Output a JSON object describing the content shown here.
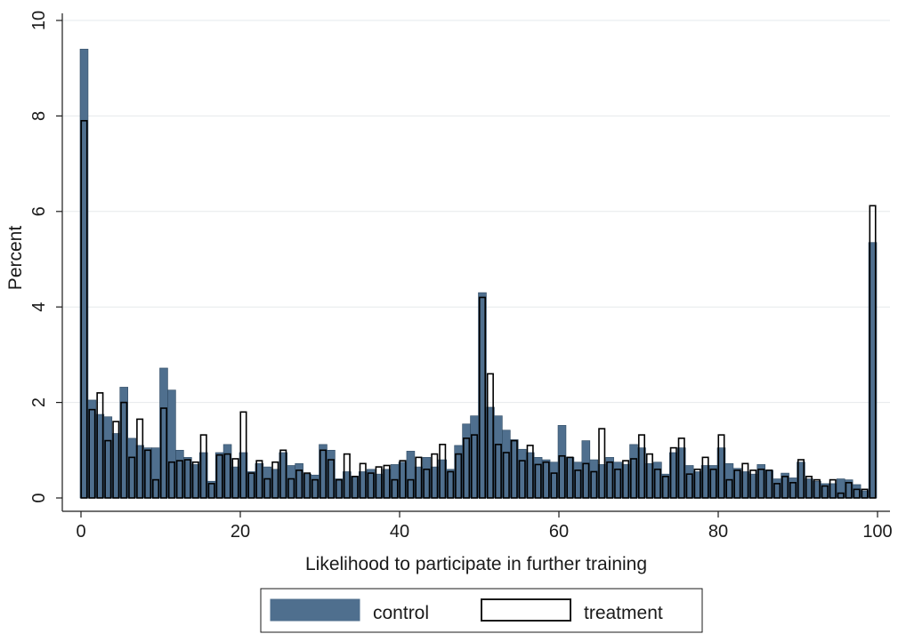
{
  "chart_data": {
    "type": "bar",
    "title": "",
    "xlabel": "Likelihood to participate in further training",
    "ylabel": "Percent",
    "xlim": [
      0,
      100
    ],
    "ylim": [
      0,
      10
    ],
    "xticks": [
      0,
      20,
      40,
      60,
      80,
      100
    ],
    "yticks": [
      0,
      2,
      4,
      6,
      8,
      10
    ],
    "grid": true,
    "legend_position": "bottom",
    "x": [
      0,
      1,
      2,
      3,
      4,
      5,
      6,
      7,
      8,
      9,
      10,
      11,
      12,
      13,
      14,
      15,
      16,
      17,
      18,
      19,
      20,
      21,
      22,
      23,
      24,
      25,
      26,
      27,
      28,
      29,
      30,
      31,
      32,
      33,
      34,
      35,
      36,
      37,
      38,
      39,
      40,
      41,
      42,
      43,
      44,
      45,
      46,
      47,
      48,
      49,
      50,
      51,
      52,
      53,
      54,
      55,
      56,
      57,
      58,
      59,
      60,
      61,
      62,
      63,
      64,
      65,
      66,
      67,
      68,
      69,
      70,
      71,
      72,
      73,
      74,
      75,
      76,
      77,
      78,
      79,
      80,
      81,
      82,
      83,
      84,
      85,
      86,
      87,
      88,
      89,
      90,
      91,
      92,
      93,
      94,
      95,
      96,
      97,
      98,
      99
    ],
    "series": [
      {
        "name": "control",
        "color": "#4f6f8e",
        "values": [
          9.4,
          2.05,
          1.75,
          1.7,
          1.35,
          2.32,
          1.25,
          1.1,
          1.05,
          1.05,
          2.72,
          2.26,
          1.0,
          0.85,
          0.7,
          0.95,
          0.35,
          0.95,
          1.12,
          0.65,
          0.95,
          0.55,
          0.72,
          0.65,
          0.6,
          0.95,
          0.68,
          0.72,
          0.5,
          0.48,
          1.12,
          1.0,
          0.4,
          0.55,
          0.45,
          0.55,
          0.6,
          0.5,
          0.6,
          0.7,
          0.75,
          0.98,
          0.65,
          0.85,
          0.65,
          0.8,
          0.6,
          1.1,
          1.55,
          1.72,
          4.3,
          1.9,
          1.72,
          1.42,
          1.22,
          1.02,
          0.95,
          0.85,
          0.8,
          0.75,
          1.52,
          0.85,
          0.75,
          1.2,
          0.8,
          0.7,
          0.85,
          0.75,
          0.7,
          1.12,
          1.05,
          0.72,
          0.75,
          0.5,
          0.95,
          1.05,
          0.68,
          0.55,
          0.68,
          0.68,
          1.05,
          0.72,
          0.62,
          0.55,
          0.5,
          0.7,
          0.58,
          0.4,
          0.52,
          0.42,
          0.75,
          0.4,
          0.35,
          0.3,
          0.3,
          0.4,
          0.38,
          0.28,
          0.15,
          5.35
        ]
      },
      {
        "name": "treatment",
        "color": "#ffffff",
        "values": [
          7.9,
          1.85,
          2.2,
          1.2,
          1.6,
          2.0,
          0.85,
          1.65,
          1.0,
          0.38,
          1.88,
          0.75,
          0.78,
          0.8,
          0.75,
          1.32,
          0.3,
          0.9,
          0.92,
          0.82,
          1.8,
          0.52,
          0.78,
          0.4,
          0.75,
          1.0,
          0.4,
          0.58,
          0.52,
          0.38,
          1.0,
          0.8,
          0.38,
          0.92,
          0.45,
          0.72,
          0.52,
          0.65,
          0.68,
          0.38,
          0.78,
          0.38,
          0.85,
          0.6,
          0.92,
          1.12,
          0.55,
          0.92,
          1.25,
          1.32,
          4.2,
          2.6,
          1.12,
          0.95,
          1.2,
          0.78,
          1.1,
          0.7,
          0.75,
          0.52,
          0.88,
          0.85,
          0.58,
          0.72,
          0.55,
          1.45,
          0.75,
          0.6,
          0.78,
          0.82,
          1.32,
          0.92,
          0.6,
          0.45,
          1.05,
          1.25,
          0.5,
          0.6,
          0.85,
          0.6,
          1.32,
          0.38,
          0.58,
          0.72,
          0.58,
          0.6,
          0.58,
          0.3,
          0.45,
          0.32,
          0.8,
          0.45,
          0.38,
          0.25,
          0.38,
          0.1,
          0.32,
          0.18,
          0.18,
          6.12
        ]
      }
    ]
  }
}
